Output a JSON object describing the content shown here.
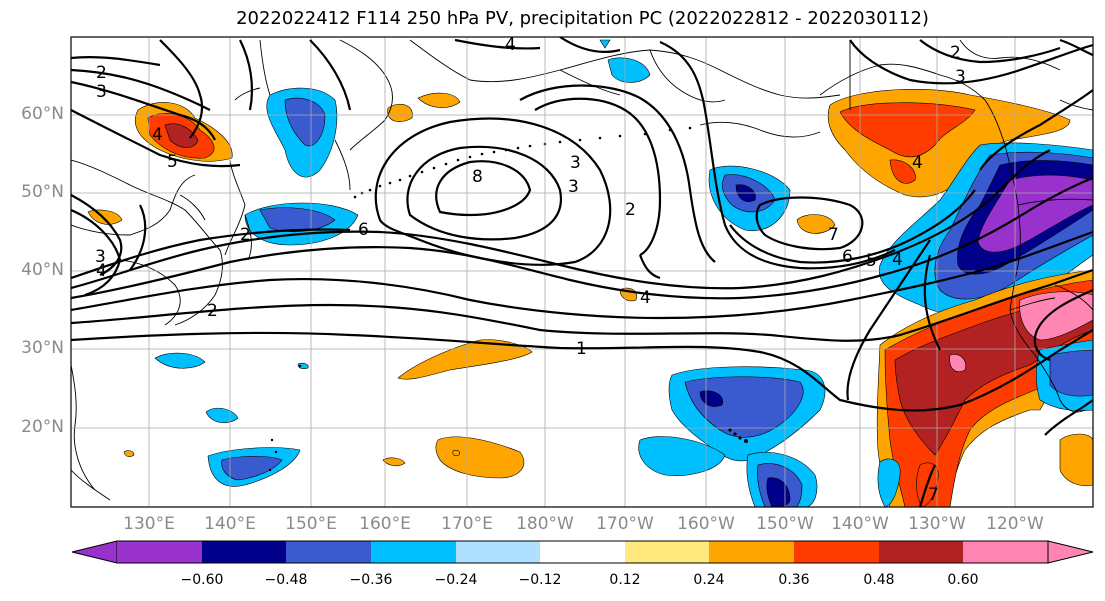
{
  "title": "2022022412 F114 250 hPa PV, precipitation PC (2022022812 - 2022030112)",
  "map": {
    "lat_labels": [
      "60°N",
      "50°N",
      "40°N",
      "30°N",
      "20°N"
    ],
    "lon_labels": [
      "130°E",
      "140°E",
      "150°E",
      "160°E",
      "170°E",
      "180°W",
      "170°W",
      "160°W",
      "150°W",
      "140°W",
      "130°W",
      "120°W"
    ],
    "contour_labels": [
      "1",
      "2",
      "3",
      "4",
      "5",
      "6",
      "7",
      "8"
    ]
  },
  "colorbar": {
    "tick_labels": [
      "−0.60",
      "−0.48",
      "−0.36",
      "−0.24",
      "−0.12",
      "0.12",
      "0.24",
      "0.36",
      "0.48",
      "0.60"
    ],
    "colors": [
      "#9932cc",
      "#00008b",
      "#3a5bd0",
      "#00bfff",
      "#b0e0ff",
      "#ffffff",
      "#ffe97f",
      "#ffa500",
      "#ff3c00",
      "#b22222",
      "#ff85b3"
    ]
  }
}
